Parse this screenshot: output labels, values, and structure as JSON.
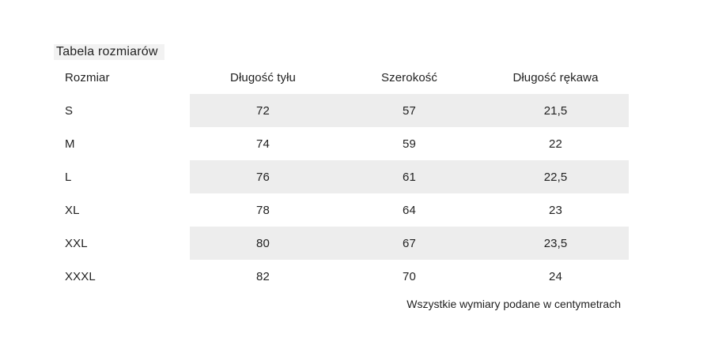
{
  "size_table": {
    "title": "Tabela rozmiarów",
    "columns": [
      "Rozmiar",
      "Długość tyłu",
      "Szerokość",
      "Długość rękawa"
    ],
    "rows": [
      {
        "size": "S",
        "back_length": "72",
        "width": "57",
        "sleeve_length": "21,5"
      },
      {
        "size": "M",
        "back_length": "74",
        "width": "59",
        "sleeve_length": "22"
      },
      {
        "size": "L",
        "back_length": "76",
        "width": "61",
        "sleeve_length": "22,5"
      },
      {
        "size": "XL",
        "back_length": "78",
        "width": "64",
        "sleeve_length": "23"
      },
      {
        "size": "XXL",
        "back_length": "80",
        "width": "67",
        "sleeve_length": "23,5"
      },
      {
        "size": "XXXL",
        "back_length": "82",
        "width": "70",
        "sleeve_length": "24"
      }
    ],
    "note": "Wszystkie wymiary podane w centymetrach",
    "colors": {
      "stripe": "#ededed",
      "title_highlight": "#f2f2f2",
      "text": "#222222",
      "background": "#ffffff"
    }
  }
}
